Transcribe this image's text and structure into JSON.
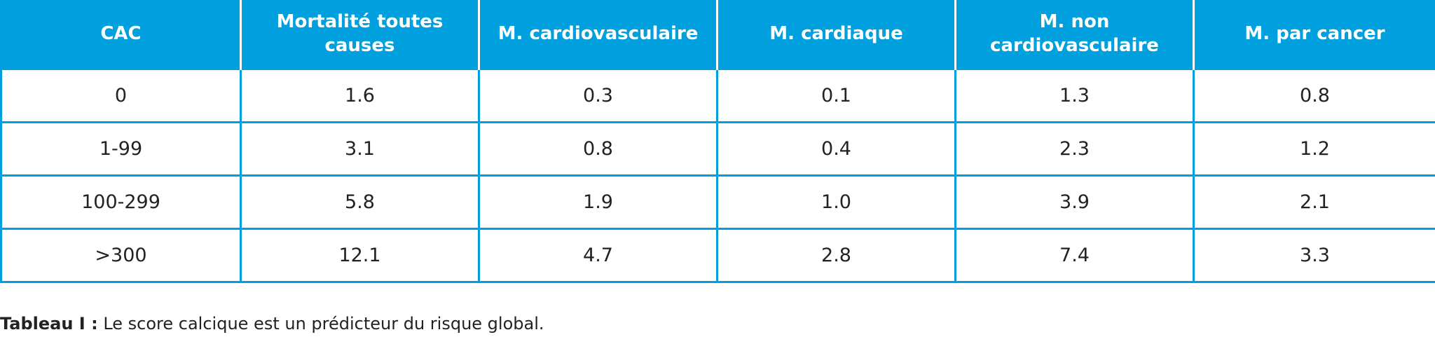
{
  "table": {
    "headers": [
      "CAC",
      "Mortalité toutes causes",
      "M. cardiovasculaire",
      "M. cardiaque",
      "M. non cardiovasculaire",
      "M. par cancer"
    ],
    "rows": [
      [
        "0",
        "1.6",
        "0.3",
        "0.1",
        "1.3",
        "0.8"
      ],
      [
        "1-99",
        "3.1",
        "0.8",
        "0.4",
        "2.3",
        "1.2"
      ],
      [
        "100-299",
        "5.8",
        "1.9",
        "1.0",
        "3.9",
        "2.1"
      ],
      [
        ">300",
        "12.1",
        "4.7",
        "2.8",
        "7.4",
        "3.3"
      ]
    ]
  },
  "caption": {
    "label": "Tableau I :",
    "text": " Le score calcique est un prédicteur du risque global."
  },
  "colors": {
    "header_bg": "#00a0df",
    "border": "#00a0df"
  }
}
